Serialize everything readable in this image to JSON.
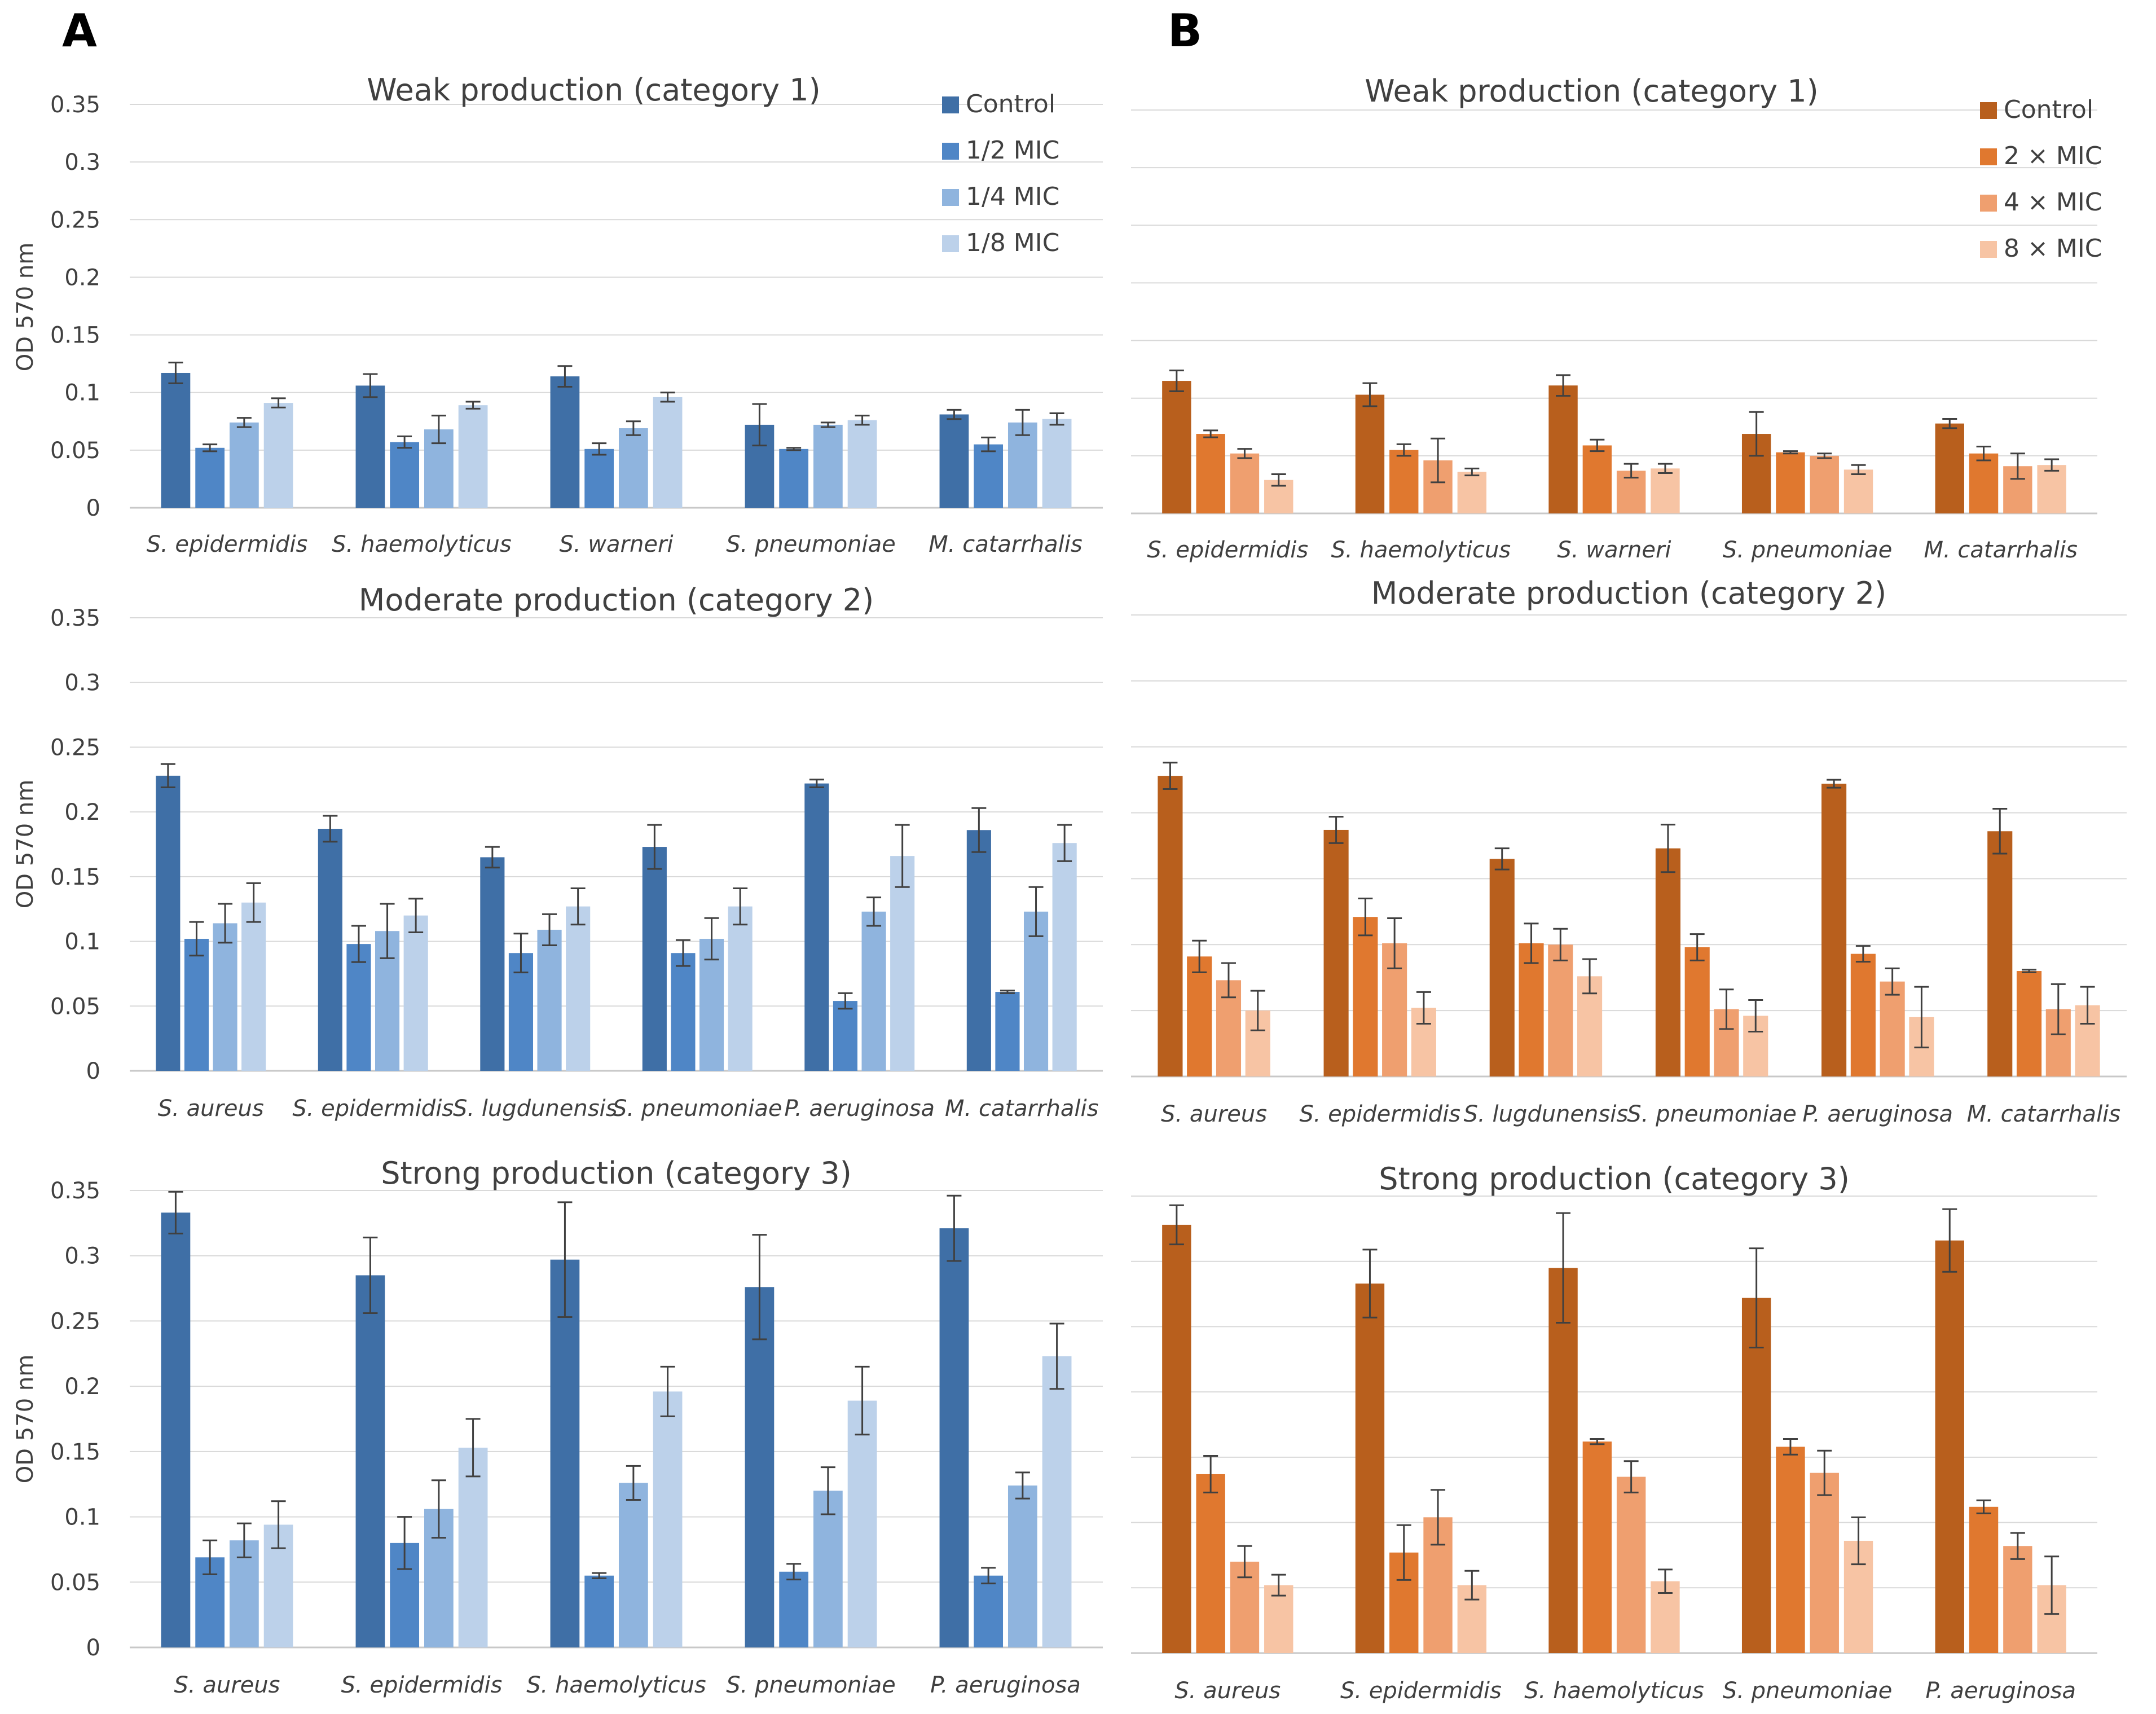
{
  "panels": [
    {
      "letter": "A"
    },
    {
      "letter": "B"
    }
  ],
  "chart_data": [
    {
      "type": "bar",
      "panel": "A",
      "title": "Weak production (category 1)",
      "ylabel": "OD 570 nm",
      "ylim": [
        0,
        0.35
      ],
      "yticks": [
        "0",
        "0.05",
        "0.1",
        "0.15",
        "0.2",
        "0.25",
        "0.3",
        "0.35"
      ],
      "legend_position": "top-right",
      "colors": [
        "#3f6fa6",
        "#4f86c6",
        "#8fb4de",
        "#bcd1ea"
      ],
      "categories": [
        "S. epidermidis",
        "S. haemolyticus",
        "S. warneri",
        "S. pneumoniae",
        "M. catarrhalis"
      ],
      "series": [
        {
          "name": "Control",
          "values": [
            0.117,
            0.106,
            0.114,
            0.072,
            0.081
          ],
          "errors": [
            0.009,
            0.01,
            0.009,
            0.018,
            0.004
          ]
        },
        {
          "name": "1/2 MIC",
          "values": [
            0.052,
            0.057,
            0.051,
            0.051,
            0.055
          ],
          "errors": [
            0.003,
            0.005,
            0.005,
            0.001,
            0.006
          ]
        },
        {
          "name": "1/4 MIC",
          "values": [
            0.074,
            0.068,
            0.069,
            0.072,
            0.074
          ],
          "errors": [
            0.004,
            0.012,
            0.006,
            0.002,
            0.011
          ]
        },
        {
          "name": "1/8 MIC",
          "values": [
            0.091,
            0.089,
            0.096,
            0.076,
            0.077
          ],
          "errors": [
            0.004,
            0.003,
            0.004,
            0.004,
            0.005
          ]
        }
      ]
    },
    {
      "type": "bar",
      "panel": "A",
      "title": "Moderate production (category 2)",
      "ylabel": "OD 570 nm",
      "ylim": [
        0,
        0.35
      ],
      "yticks": [
        "0",
        "0.05",
        "0.1",
        "0.15",
        "0.2",
        "0.25",
        "0.3",
        "0.35"
      ],
      "colors": [
        "#3f6fa6",
        "#4f86c6",
        "#8fb4de",
        "#bcd1ea"
      ],
      "categories": [
        "S. aureus",
        "S. epidermidis",
        "S. lugdunensis",
        "S. pneumoniae",
        "P. aeruginosa",
        "M. catarrhalis"
      ],
      "series": [
        {
          "name": "Control",
          "values": [
            0.228,
            0.187,
            0.165,
            0.173,
            0.222,
            0.186
          ],
          "errors": [
            0.009,
            0.01,
            0.008,
            0.017,
            0.003,
            0.017
          ]
        },
        {
          "name": "1/2 MIC",
          "values": [
            0.102,
            0.098,
            0.091,
            0.091,
            0.054,
            0.061
          ],
          "errors": [
            0.013,
            0.014,
            0.015,
            0.01,
            0.006,
            0.001
          ]
        },
        {
          "name": "1/4 MIC",
          "values": [
            0.114,
            0.108,
            0.109,
            0.102,
            0.123,
            0.123
          ],
          "errors": [
            0.015,
            0.021,
            0.012,
            0.016,
            0.011,
            0.019
          ]
        },
        {
          "name": "1/8 MIC",
          "values": [
            0.13,
            0.12,
            0.127,
            0.127,
            0.166,
            0.176
          ],
          "errors": [
            0.015,
            0.013,
            0.014,
            0.014,
            0.024,
            0.014
          ]
        }
      ]
    },
    {
      "type": "bar",
      "panel": "A",
      "title": "Strong production (category 3)",
      "ylabel": "OD 570 nm",
      "ylim": [
        0,
        0.35
      ],
      "yticks": [
        "0",
        "0.05",
        "0.1",
        "0.15",
        "0.2",
        "0.25",
        "0.3",
        "0.35"
      ],
      "colors": [
        "#3f6fa6",
        "#4f86c6",
        "#8fb4de",
        "#bcd1ea"
      ],
      "categories": [
        "S. aureus",
        "S. epidermidis",
        "S. haemolyticus",
        "S. pneumoniae",
        "P. aeruginosa"
      ],
      "series": [
        {
          "name": "Control",
          "values": [
            0.333,
            0.285,
            0.297,
            0.276,
            0.321
          ],
          "errors": [
            0.016,
            0.029,
            0.044,
            0.04,
            0.025
          ]
        },
        {
          "name": "1/2 MIC",
          "values": [
            0.069,
            0.08,
            0.055,
            0.058,
            0.055
          ],
          "errors": [
            0.013,
            0.02,
            0.002,
            0.006,
            0.006
          ]
        },
        {
          "name": "1/4 MIC",
          "values": [
            0.082,
            0.106,
            0.126,
            0.12,
            0.124
          ],
          "errors": [
            0.013,
            0.022,
            0.013,
            0.018,
            0.01
          ]
        },
        {
          "name": "1/8 MIC",
          "values": [
            0.094,
            0.153,
            0.196,
            0.189,
            0.223
          ],
          "errors": [
            0.018,
            0.022,
            0.019,
            0.026,
            0.025
          ]
        }
      ]
    },
    {
      "type": "bar",
      "panel": "B",
      "title": "Weak production (category 1)",
      "ylabel": "",
      "ylim": [
        0,
        0.35
      ],
      "legend_position": "top-right",
      "colors": [
        "#b85f1d",
        "#e0782f",
        "#ef9f6f",
        "#f7c4a4"
      ],
      "categories": [
        "S. epidermidis",
        "S. haemolyticus",
        "S. warneri",
        "S. pneumoniae",
        "M. catarrhalis"
      ],
      "series": [
        {
          "name": "Control",
          "values": [
            0.115,
            0.103,
            0.111,
            0.069,
            0.078
          ],
          "errors": [
            0.009,
            0.01,
            0.009,
            0.019,
            0.004
          ]
        },
        {
          "name": "2 × MIC",
          "values": [
            0.069,
            0.055,
            0.059,
            0.053,
            0.052
          ],
          "errors": [
            0.003,
            0.005,
            0.005,
            0.001,
            0.006
          ]
        },
        {
          "name": "4 × MIC",
          "values": [
            0.052,
            0.046,
            0.037,
            0.05,
            0.041
          ],
          "errors": [
            0.004,
            0.019,
            0.006,
            0.002,
            0.011
          ]
        },
        {
          "name": "8 × MIC",
          "values": [
            0.029,
            0.036,
            0.039,
            0.038,
            0.042
          ],
          "errors": [
            0.005,
            0.003,
            0.004,
            0.004,
            0.005
          ]
        }
      ]
    },
    {
      "type": "bar",
      "panel": "B",
      "title": "Moderate production (category 2)",
      "ylabel": "",
      "ylim": [
        0,
        0.35
      ],
      "colors": [
        "#b85f1d",
        "#e0782f",
        "#ef9f6f",
        "#f7c4a4"
      ],
      "categories": [
        "S. aureus",
        "S. epidermidis",
        "S. lugdunensis",
        "S. pneumoniae",
        "P. aeruginosa",
        "M. catarrhalis"
      ],
      "series": [
        {
          "name": "Control",
          "values": [
            0.228,
            0.187,
            0.165,
            0.173,
            0.222,
            0.186
          ],
          "errors": [
            0.01,
            0.01,
            0.008,
            0.018,
            0.003,
            0.017
          ]
        },
        {
          "name": "2 × MIC",
          "values": [
            0.091,
            0.121,
            0.101,
            0.098,
            0.093,
            0.08
          ],
          "errors": [
            0.012,
            0.014,
            0.015,
            0.01,
            0.006,
            0.001
          ]
        },
        {
          "name": "4 × MIC",
          "values": [
            0.073,
            0.101,
            0.1,
            0.051,
            0.072,
            0.051
          ],
          "errors": [
            0.013,
            0.019,
            0.012,
            0.015,
            0.01,
            0.019
          ]
        },
        {
          "name": "8 × MIC",
          "values": [
            0.05,
            0.052,
            0.076,
            0.046,
            0.045,
            0.054
          ],
          "errors": [
            0.015,
            0.012,
            0.013,
            0.012,
            0.023,
            0.014
          ]
        }
      ]
    },
    {
      "type": "bar",
      "panel": "B",
      "title": "Strong production (category 3)",
      "ylabel": "",
      "ylim": [
        0,
        0.35
      ],
      "colors": [
        "#b85f1d",
        "#e0782f",
        "#ef9f6f",
        "#f7c4a4"
      ],
      "categories": [
        "S. aureus",
        "S. epidermidis",
        "S. haemolyticus",
        "S. pneumoniae",
        "P. aeruginosa"
      ],
      "series": [
        {
          "name": "Control",
          "values": [
            0.328,
            0.283,
            0.295,
            0.272,
            0.316
          ],
          "errors": [
            0.015,
            0.026,
            0.042,
            0.038,
            0.024
          ]
        },
        {
          "name": "2 × MIC",
          "values": [
            0.137,
            0.077,
            0.162,
            0.158,
            0.112
          ],
          "errors": [
            0.014,
            0.021,
            0.002,
            0.006,
            0.005
          ]
        },
        {
          "name": "4 × MIC",
          "values": [
            0.07,
            0.104,
            0.135,
            0.138,
            0.082
          ],
          "errors": [
            0.012,
            0.021,
            0.012,
            0.017,
            0.01
          ]
        },
        {
          "name": "8 × MIC",
          "values": [
            0.052,
            0.052,
            0.055,
            0.086,
            0.052
          ],
          "errors": [
            0.008,
            0.011,
            0.009,
            0.018,
            0.022
          ]
        }
      ]
    }
  ]
}
